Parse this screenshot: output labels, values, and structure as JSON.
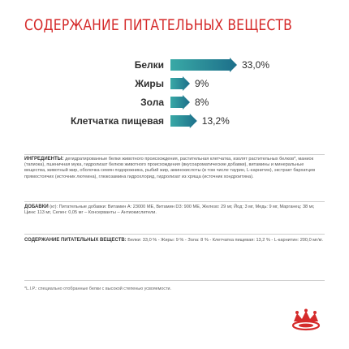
{
  "title": "СОДЕРЖАНИЕ ПИТАТЕЛЬНЫХ ВЕЩЕСТВ",
  "colors": {
    "title": "#d52b2b",
    "arrow_start": "#39a9a6",
    "arrow_end": "#1d6f8a"
  },
  "chart_data": {
    "type": "bar",
    "categories": [
      "Белки",
      "Жиры",
      "Зола",
      "Клетчатка пищевая"
    ],
    "values": [
      33.0,
      9,
      8,
      13.2
    ],
    "value_labels": [
      "33,0%",
      "9%",
      "8%",
      "13,2%"
    ],
    "unit": "%"
  },
  "ingredients": {
    "label": "ИНГРЕДИЕНТЫ:",
    "text": "дегидратированные белки животного происхождения, растительная клетчатка, изолят растительных белков*, маниок (тапиока), пшеничная мука, гидролизат белков животного происхождения (вкусоароматические добавки), витамины и минеральные вещества, животный жир, оболочка семян подорожника, рыбий жир, аминокислоты (в том числе таурин, L-карнитин), экстракт бархатцев прямостоячих (источник лютеина), глюкозамина гидрохлорид, гидролизат из хряща (источник хондроитина)."
  },
  "additives": {
    "label": "ДОБАВКИ",
    "unit": "(кг):",
    "text": "Питательные добавки: Витамин А: 23000 МЕ, Витамин D3: 900 МЕ, Железо: 29 мг, Йод: 3 мг, Медь: 9 мг, Марганец: 38 мг, Цинк: 113 мг, Селен: 0,05 мг – Консерванты – Антиокислители."
  },
  "nutrients": {
    "label": "СОДЕРЖАНИЕ ПИТАТЕЛЬНЫХ ВЕЩЕСТВ:",
    "text": "Белки: 33,0 % - Жиры: 9 % - Зола: 8 % - Клетчатка пищевая: 13,2 % - L-карнитин: 200,0 мг/кг."
  },
  "footnote": "*L.I.P.: специально отобранные белки с высокой степенью усвояемости.",
  "logo": {
    "icon": "crown-icon",
    "brand": "Royal Canin"
  }
}
